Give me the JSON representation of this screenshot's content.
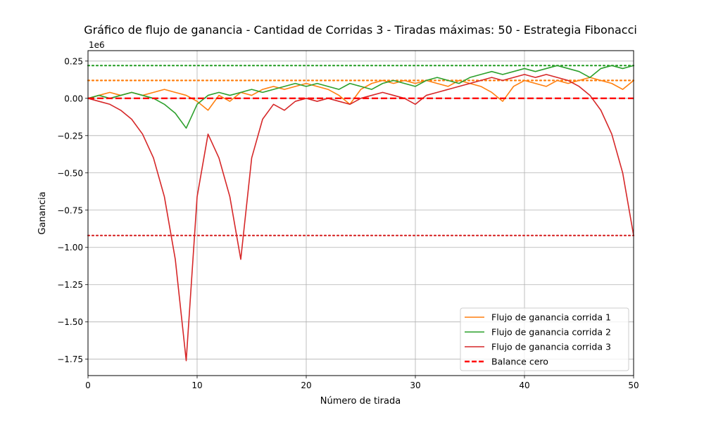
{
  "chart_data": {
    "type": "line",
    "title": "Gráfico de flujo de ganancia - Cantidad de Corridas 3 - Tiradas máximas: 50 - Estrategia Fibonacci",
    "xlabel": "Número de tirada",
    "ylabel": "Ganancia",
    "y_scale_label": "1e6",
    "xlim": [
      0,
      50
    ],
    "ylim": [
      -1.86,
      0.32
    ],
    "x_ticks": [
      0,
      10,
      20,
      30,
      40,
      50
    ],
    "x_tick_labels": [
      "0",
      "10",
      "20",
      "30",
      "40",
      "50"
    ],
    "y_ticks": [
      0.25,
      0,
      -0.25,
      -0.5,
      -0.75,
      -1.0,
      -1.25,
      -1.5,
      -1.75
    ],
    "y_tick_labels": [
      "0.25",
      "0.00",
      "−0.25",
      "−0.50",
      "−0.75",
      "−1.00",
      "−1.25",
      "−1.50",
      "−1.75"
    ],
    "grid": true,
    "legend_position": "bottom-right",
    "series": [
      {
        "name": "Flujo de ganancia corrida 1",
        "color": "#ff7f0e",
        "mean": 0.12,
        "x": [
          0,
          1,
          2,
          3,
          4,
          5,
          6,
          7,
          8,
          9,
          10,
          11,
          12,
          13,
          14,
          15,
          16,
          17,
          18,
          19,
          20,
          21,
          22,
          23,
          24,
          25,
          26,
          27,
          28,
          29,
          30,
          31,
          32,
          33,
          34,
          35,
          36,
          37,
          38,
          39,
          40,
          41,
          42,
          43,
          44,
          45,
          46,
          47,
          48,
          49,
          50
        ],
        "values": [
          0,
          0.02,
          0.04,
          0.02,
          0.04,
          0.02,
          0.04,
          0.06,
          0.04,
          0.02,
          -0.02,
          -0.08,
          0.02,
          -0.02,
          0.04,
          0.02,
          0.06,
          0.08,
          0.06,
          0.08,
          0.1,
          0.08,
          0.06,
          0.02,
          -0.04,
          0.06,
          0.1,
          0.12,
          0.1,
          0.12,
          0.1,
          0.12,
          0.1,
          0.08,
          0.12,
          0.1,
          0.08,
          0.04,
          -0.02,
          0.08,
          0.12,
          0.1,
          0.08,
          0.12,
          0.1,
          0.12,
          0.14,
          0.12,
          0.1,
          0.06,
          0.12
        ]
      },
      {
        "name": "Flujo de ganancia corrida 2",
        "color": "#2ca02c",
        "mean": 0.22,
        "x": [
          0,
          1,
          2,
          3,
          4,
          5,
          6,
          7,
          8,
          9,
          10,
          11,
          12,
          13,
          14,
          15,
          16,
          17,
          18,
          19,
          20,
          21,
          22,
          23,
          24,
          25,
          26,
          27,
          28,
          29,
          30,
          31,
          32,
          33,
          34,
          35,
          36,
          37,
          38,
          39,
          40,
          41,
          42,
          43,
          44,
          45,
          46,
          47,
          48,
          49,
          50
        ],
        "values": [
          0,
          0.02,
          0,
          0.02,
          0.04,
          0.02,
          0,
          -0.04,
          -0.1,
          -0.2,
          -0.04,
          0.02,
          0.04,
          0.02,
          0.04,
          0.06,
          0.04,
          0.06,
          0.08,
          0.1,
          0.08,
          0.1,
          0.08,
          0.06,
          0.1,
          0.08,
          0.06,
          0.1,
          0.12,
          0.1,
          0.08,
          0.12,
          0.14,
          0.12,
          0.1,
          0.14,
          0.16,
          0.18,
          0.16,
          0.18,
          0.2,
          0.18,
          0.2,
          0.22,
          0.2,
          0.18,
          0.14,
          0.2,
          0.22,
          0.2,
          0.22
        ]
      },
      {
        "name": "Flujo de ganancia corrida 3",
        "color": "#d62728",
        "mean": -0.92,
        "x": [
          0,
          1,
          2,
          3,
          4,
          5,
          6,
          7,
          8,
          9,
          10,
          11,
          12,
          13,
          14,
          15,
          16,
          17,
          18,
          19,
          20,
          21,
          22,
          23,
          24,
          25,
          26,
          27,
          28,
          29,
          30,
          31,
          32,
          33,
          34,
          35,
          36,
          37,
          38,
          39,
          40,
          41,
          42,
          43,
          44,
          45,
          46,
          47,
          48,
          49,
          50
        ],
        "values": [
          0,
          -0.02,
          -0.04,
          -0.08,
          -0.14,
          -0.24,
          -0.4,
          -0.66,
          -1.08,
          -1.76,
          -0.66,
          -0.24,
          -0.4,
          -0.66,
          -1.08,
          -0.4,
          -0.14,
          -0.04,
          -0.08,
          -0.02,
          0,
          -0.02,
          0,
          -0.02,
          -0.04,
          0,
          0.02,
          0.04,
          0.02,
          0,
          -0.04,
          0.02,
          0.04,
          0.06,
          0.08,
          0.1,
          0.12,
          0.14,
          0.12,
          0.14,
          0.16,
          0.14,
          0.16,
          0.14,
          0.12,
          0.08,
          0.02,
          -0.08,
          -0.24,
          -0.5,
          -0.92
        ]
      }
    ],
    "reference_lines": [
      {
        "name": "Balance cero",
        "value": 0,
        "color": "#ff0000",
        "style": "dashed",
        "in_legend": true
      }
    ]
  }
}
